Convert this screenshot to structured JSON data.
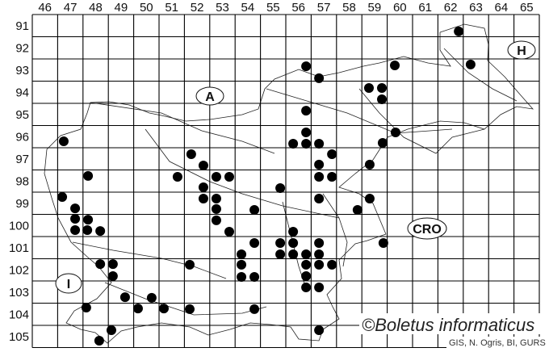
{
  "map": {
    "columns": [
      "46",
      "47",
      "48",
      "49",
      "50",
      "51",
      "52",
      "53",
      "54",
      "55",
      "56",
      "57",
      "58",
      "59",
      "60",
      "61",
      "62",
      "63",
      "64",
      "65"
    ],
    "rows": [
      "91",
      "92",
      "93",
      "94",
      "95",
      "96",
      "97",
      "98",
      "99",
      "100",
      "101",
      "102",
      "103",
      "104",
      "105"
    ],
    "regions": [
      {
        "label": "A"
      },
      {
        "label": "H"
      },
      {
        "label": "I"
      },
      {
        "label": "CRO"
      }
    ],
    "copyright": "©Boletus informaticus",
    "credit": "GIS, N. Ogris, BI, GURS",
    "dot_color": "#000000",
    "records_grid_coords": [
      [
        62.82,
        91.76
      ],
      [
        60.3,
        93.29
      ],
      [
        63.29,
        93.25
      ],
      [
        56.8,
        93.33
      ],
      [
        57.31,
        93.87
      ],
      [
        59.28,
        94.31
      ],
      [
        59.79,
        94.31
      ],
      [
        59.79,
        94.82
      ],
      [
        56.8,
        95.33
      ],
      [
        56.8,
        96.31
      ],
      [
        56.29,
        96.82
      ],
      [
        56.8,
        96.82
      ],
      [
        57.31,
        96.82
      ],
      [
        57.82,
        97.29
      ],
      [
        57.31,
        97.76
      ],
      [
        59.31,
        97.76
      ],
      [
        60.33,
        96.31
      ],
      [
        59.82,
        96.78
      ],
      [
        47.24,
        96.71
      ],
      [
        52.27,
        97.29
      ],
      [
        52.75,
        97.8
      ],
      [
        48.2,
        98.27
      ],
      [
        51.73,
        98.31
      ],
      [
        53.26,
        98.31
      ],
      [
        53.77,
        98.31
      ],
      [
        52.75,
        98.78
      ],
      [
        47.18,
        99.22
      ],
      [
        52.75,
        99.29
      ],
      [
        53.26,
        99.29
      ],
      [
        47.69,
        99.73
      ],
      [
        53.26,
        99.76
      ],
      [
        54.76,
        99.8
      ],
      [
        47.69,
        100.2
      ],
      [
        48.2,
        100.24
      ],
      [
        53.26,
        100.27
      ],
      [
        47.69,
        100.71
      ],
      [
        48.17,
        100.71
      ],
      [
        48.68,
        100.75
      ],
      [
        53.77,
        100.78
      ],
      [
        54.76,
        101.29
      ],
      [
        54.25,
        101.8
      ],
      [
        48.68,
        102.24
      ],
      [
        49.18,
        102.24
      ],
      [
        52.21,
        102.27
      ],
      [
        54.25,
        102.27
      ],
      [
        49.18,
        102.78
      ],
      [
        54.25,
        102.82
      ],
      [
        54.76,
        102.82
      ],
      [
        49.66,
        103.73
      ],
      [
        50.71,
        103.76
      ],
      [
        48.13,
        104.2
      ],
      [
        50.17,
        104.24
      ],
      [
        51.19,
        104.24
      ],
      [
        52.21,
        104.27
      ],
      [
        54.76,
        104.27
      ],
      [
        49.12,
        105.22
      ],
      [
        48.64,
        105.69
      ],
      [
        57.31,
        98.31
      ],
      [
        57.82,
        98.31
      ],
      [
        55.78,
        98.82
      ],
      [
        57.31,
        99.29
      ],
      [
        59.31,
        99.29
      ],
      [
        58.83,
        99.8
      ],
      [
        56.29,
        100.78
      ],
      [
        55.78,
        101.29
      ],
      [
        56.29,
        101.29
      ],
      [
        57.31,
        101.29
      ],
      [
        59.85,
        101.29
      ],
      [
        55.78,
        101.8
      ],
      [
        56.29,
        101.8
      ],
      [
        56.8,
        101.8
      ],
      [
        57.31,
        101.8
      ],
      [
        56.8,
        102.27
      ],
      [
        57.31,
        102.27
      ],
      [
        57.82,
        102.27
      ],
      [
        56.8,
        102.78
      ],
      [
        56.8,
        103.29
      ],
      [
        57.31,
        103.29
      ],
      [
        57.31,
        105.22
      ]
    ]
  }
}
